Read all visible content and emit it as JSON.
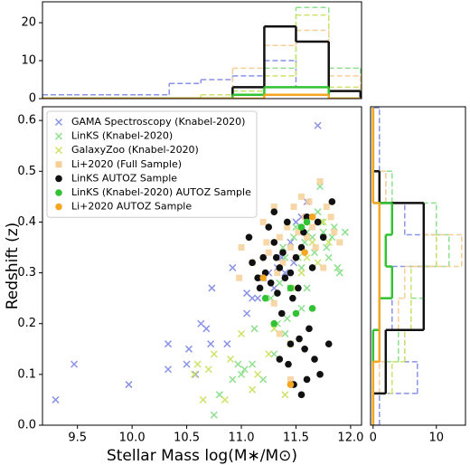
{
  "chart_data": [
    {
      "type": "histogram",
      "orientation": "vertical",
      "bins": [
        9.18,
        9.47,
        9.76,
        10.05,
        10.34,
        10.63,
        10.92,
        11.21,
        11.5,
        11.8,
        12.09
      ],
      "xlim": [
        9.18,
        12.1
      ],
      "ylim": [
        0,
        25.5
      ],
      "yticks": [
        0,
        10,
        20
      ],
      "series": [
        {
          "color": "#8b93e6",
          "style": "dashed",
          "values": [
            1,
            1,
            1,
            1,
            4,
            5,
            6,
            10,
            3,
            0
          ]
        },
        {
          "color": "#8ee08e",
          "style": "dashed",
          "values": [
            0,
            0,
            0,
            0,
            0,
            0,
            2,
            8,
            24,
            8
          ]
        },
        {
          "color": "#cde36a",
          "style": "dashed",
          "values": [
            0,
            0,
            0,
            0,
            0,
            1,
            2,
            6,
            22,
            3
          ]
        },
        {
          "color": "#f6cf98",
          "style": "dashed",
          "values": [
            0,
            0,
            0,
            0,
            0,
            0,
            8,
            14,
            18,
            6
          ]
        },
        {
          "color": "#111111",
          "style": "solid",
          "values": [
            0,
            0,
            0,
            0,
            0,
            0,
            3,
            19,
            15,
            2
          ]
        },
        {
          "color": "#33c233",
          "style": "solid",
          "values": [
            0,
            0,
            0,
            0,
            0,
            0,
            1,
            3,
            3,
            0
          ]
        },
        {
          "color": "#f5a623",
          "style": "solid",
          "values": [
            0,
            0,
            0,
            0,
            0,
            0,
            0,
            1,
            1,
            0
          ]
        }
      ]
    },
    {
      "type": "scatter",
      "xlabel": "Stellar Mass log(M∗/M⊙)",
      "ylabel": "Redshift (z)",
      "xlim": [
        9.18,
        12.1
      ],
      "ylim": [
        0,
        0.627
      ],
      "xticks": [
        9.5,
        {
          "value": 10,
          "label": "10.0"
        },
        10.5,
        {
          "value": 11,
          "label": "11.0"
        },
        11.5,
        {
          "value": 12,
          "label": "12.0"
        }
      ],
      "yticks": [
        {
          "value": 0,
          "label": "0.0"
        },
        0.1,
        0.2,
        0.3,
        0.4,
        0.5,
        0.6
      ],
      "legend": "upper left",
      "series": [
        {
          "name": "GAMA Spectroscopy (Knabel-2020)",
          "color": "#8b93e6",
          "marker": "x",
          "x": [
            9.3,
            9.47,
            9.97,
            10.33,
            10.33,
            10.5,
            10.52,
            10.58,
            10.63,
            10.68,
            10.72,
            10.73,
            10.87,
            10.92,
            11.05,
            11.1,
            11.15,
            11.2,
            11.25,
            11.3,
            11.33,
            11.37,
            11.4,
            11.45,
            11.48,
            11.5,
            11.55,
            11.7,
            11.6,
            11.05
          ],
          "values": [
            0.05,
            0.12,
            0.08,
            0.16,
            0.11,
            0.12,
            0.15,
            0.1,
            0.2,
            0.19,
            0.16,
            0.27,
            0.16,
            0.31,
            0.22,
            0.25,
            0.25,
            0.29,
            0.3,
            0.27,
            0.31,
            0.33,
            0.3,
            0.36,
            0.32,
            0.4,
            0.41,
            0.59,
            0.44,
            0.26
          ]
        },
        {
          "name": "LinKS (Knabel-2020)",
          "color": "#8ee08e",
          "marker": "x",
          "x": [
            10.75,
            10.8,
            10.92,
            10.97,
            11.0,
            11.03,
            11.1,
            11.12,
            11.2,
            11.27,
            11.3,
            11.33,
            11.35,
            11.38,
            11.4,
            11.42,
            11.45,
            11.48,
            11.5,
            11.52,
            11.55,
            11.58,
            11.6,
            11.62,
            11.65,
            11.67,
            11.7,
            11.73,
            11.75,
            11.78,
            11.8,
            11.83,
            11.85,
            11.88,
            11.9,
            11.95,
            11.72,
            11.6,
            11.55,
            11.4
          ],
          "values": [
            0.02,
            0.06,
            0.09,
            0.12,
            0.1,
            0.11,
            0.12,
            0.19,
            0.09,
            0.25,
            0.14,
            0.2,
            0.28,
            0.35,
            0.33,
            0.21,
            0.27,
            0.37,
            0.39,
            0.33,
            0.31,
            0.36,
            0.38,
            0.41,
            0.37,
            0.34,
            0.42,
            0.4,
            0.38,
            0.35,
            0.33,
            0.37,
            0.39,
            0.31,
            0.3,
            0.38,
            0.47,
            0.27,
            0.23,
            0.18
          ]
        },
        {
          "name": "GalaxyZoo (Knabel-2020)",
          "color": "#cde36a",
          "marker": "x",
          "x": [
            10.57,
            10.6,
            10.65,
            10.7,
            10.75,
            10.85,
            10.9,
            11.0,
            11.1,
            11.15,
            11.25,
            11.3,
            11.4,
            11.45,
            11.5,
            11.55,
            11.6,
            11.65,
            11.7,
            11.75,
            11.8
          ],
          "values": [
            0.1,
            0.12,
            0.05,
            0.11,
            0.14,
            0.05,
            0.13,
            0.18,
            0.07,
            0.1,
            0.14,
            0.19,
            0.06,
            0.16,
            0.27,
            0.3,
            0.33,
            0.36,
            0.32,
            0.4,
            0.36
          ]
        },
        {
          "name": "Li+2020 (Full Sample)",
          "color": "#f6cf98",
          "marker": "s",
          "x": [
            10.98,
            11.0,
            11.1,
            11.2,
            11.23,
            11.25,
            11.3,
            11.33,
            11.35,
            11.38,
            11.42,
            11.45,
            11.48,
            11.5,
            11.52,
            11.55,
            11.58,
            11.6,
            11.62,
            11.65,
            11.68,
            11.72,
            11.75,
            11.78,
            11.82,
            11.85,
            11.9,
            11.3,
            11.45,
            11.35
          ],
          "values": [
            0.29,
            0.35,
            0.32,
            0.4,
            0.36,
            0.34,
            0.43,
            0.3,
            0.37,
            0.32,
            0.39,
            0.35,
            0.43,
            0.33,
            0.38,
            0.45,
            0.41,
            0.37,
            0.44,
            0.39,
            0.35,
            0.48,
            0.31,
            0.43,
            0.41,
            0.38,
            0.36,
            0.24,
            0.09,
            0.18
          ]
        },
        {
          "name": "LinKS AUTOZ Sample",
          "color": "#111111",
          "marker": "o",
          "x": [
            11.07,
            11.1,
            11.15,
            11.17,
            11.2,
            11.22,
            11.25,
            11.27,
            11.3,
            11.32,
            11.33,
            11.35,
            11.37,
            11.38,
            11.4,
            11.42,
            11.43,
            11.45,
            11.47,
            11.48,
            11.5,
            11.52,
            11.53,
            11.55,
            11.57,
            11.58,
            11.6,
            11.62,
            11.65,
            11.67,
            11.7,
            11.72,
            11.75,
            11.8,
            11.83,
            11.45,
            11.3,
            11.55,
            11.6,
            11.35
          ],
          "values": [
            0.37,
            0.32,
            0.29,
            0.27,
            0.33,
            0.3,
            0.39,
            0.28,
            0.36,
            0.33,
            0.26,
            0.31,
            0.22,
            0.34,
            0.29,
            0.4,
            0.12,
            0.3,
            0.25,
            0.08,
            0.33,
            0.27,
            0.17,
            0.35,
            0.38,
            0.15,
            0.41,
            0.19,
            0.31,
            0.13,
            0.4,
            0.1,
            0.37,
            0.16,
            0.44,
            0.16,
            0.42,
            0.06,
            0.09,
            0.13
          ]
        },
        {
          "name": "LinKS (Knabel-2020) AUTOZ Sample",
          "color": "#33c233",
          "marker": "o",
          "x": [
            11.22,
            11.3,
            11.5,
            11.55,
            11.6,
            11.65,
            11.45
          ],
          "values": [
            0.25,
            0.2,
            0.22,
            0.39,
            0.4,
            0.23,
            0.27
          ]
        },
        {
          "name": "Li+2020 AUTOZ Sample",
          "color": "#f5a623",
          "marker": "o",
          "x": [
            11.2,
            11.45,
            11.58,
            11.65
          ],
          "values": [
            0.29,
            0.08,
            0.34,
            0.41
          ]
        }
      ]
    },
    {
      "type": "histogram",
      "orientation": "horizontal",
      "bins": [
        0,
        0.0625,
        0.125,
        0.1875,
        0.25,
        0.3125,
        0.375,
        0.4375,
        0.5,
        0.5625,
        0.625
      ],
      "ylim": [
        0,
        0.627
      ],
      "xlim": [
        -0.4,
        14.6
      ],
      "xticks": [
        0,
        10
      ],
      "series": [
        {
          "color": "#8b93e6",
          "style": "dashed",
          "values": [
            1,
            7,
            5,
            3,
            3,
            10,
            5,
            2,
            1,
            1
          ]
        },
        {
          "color": "#8ee08e",
          "style": "dashed",
          "values": [
            0,
            2,
            4,
            6,
            8,
            12,
            10,
            3,
            0,
            0
          ]
        },
        {
          "color": "#cde36a",
          "style": "dashed",
          "values": [
            0,
            3,
            5,
            6,
            6,
            10,
            8,
            2,
            0,
            0
          ]
        },
        {
          "color": "#f6cf98",
          "style": "dashed",
          "values": [
            0,
            1,
            2,
            4,
            5,
            14,
            8,
            2,
            0,
            0
          ]
        },
        {
          "color": "#111111",
          "style": "solid",
          "values": [
            0,
            2,
            2,
            8,
            8,
            8,
            8,
            1,
            0,
            0
          ]
        },
        {
          "color": "#33c233",
          "style": "solid",
          "values": [
            0,
            0,
            0,
            1,
            3,
            2,
            3,
            0,
            0,
            0
          ]
        },
        {
          "color": "#f5a623",
          "style": "solid",
          "values": [
            0,
            0,
            1,
            1,
            1,
            1,
            1,
            0,
            0,
            0
          ]
        }
      ]
    }
  ]
}
